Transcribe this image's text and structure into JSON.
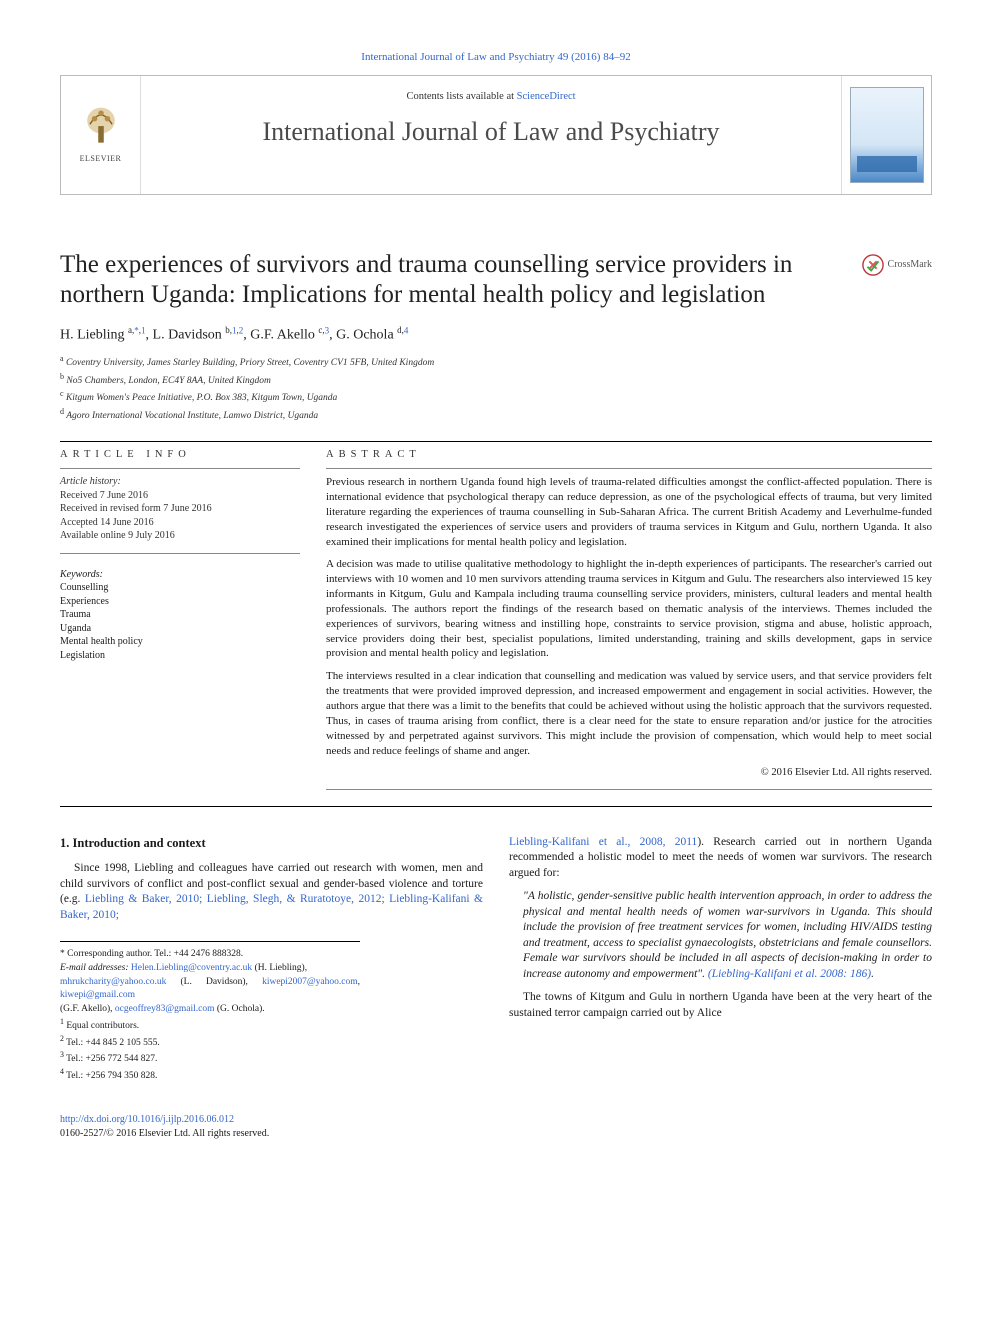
{
  "colors": {
    "link": "#3366cc",
    "text": "#1a1a1a",
    "rule": "#000000",
    "muted": "#4a4a4a",
    "background": "#ffffff"
  },
  "typography": {
    "body_family": "Georgia, 'Times New Roman', serif",
    "title_pt": 25,
    "journal_pt": 26,
    "body_pt": 11.5,
    "abstract_pt": 11,
    "footnote_pt": 9.5
  },
  "header": {
    "citation": "International Journal of Law and Psychiatry 49 (2016) 84–92",
    "contents_prefix": "Contents lists available at ",
    "contents_link": "ScienceDirect",
    "journal": "International Journal of Law and Psychiatry",
    "publisher": "ELSEVIER"
  },
  "crossmark": "CrossMark",
  "title": "The experiences of survivors and trauma counselling service providers in northern Uganda: Implications for mental health policy and legislation",
  "authors_html": "H. Liebling <sup>a,</sup><a class='sup'><sup>*</sup></a><sup>,</sup><a class='sup'><sup>1</sup></a>, L. Davidson <sup>b,</sup><a class='sup'><sup>1</sup></a><sup>,</sup><a class='sup'><sup>2</sup></a>, G.F. Akello <sup>c,</sup><a class='sup'><sup>3</sup></a>, G. Ochola <sup>d,</sup><a class='sup'><sup>4</sup></a>",
  "affiliations": {
    "a": "Coventry University, James Starley Building, Priory Street, Coventry CV1 5FB, United Kingdom",
    "b": "No5 Chambers, London, EC4Y 8AA, United Kingdom",
    "c": "Kitgum Women's Peace Initiative, P.O. Box 383, Kitgum Town, Uganda",
    "d": "Agoro International Vocational Institute, Lamwo District, Uganda"
  },
  "article_info": {
    "heading": "ARTICLE INFO",
    "history_label": "Article history:",
    "received": "Received 7 June 2016",
    "revised": "Received in revised form 7 June 2016",
    "accepted": "Accepted 14 June 2016",
    "online": "Available online 9 July 2016",
    "keywords_label": "Keywords:",
    "keywords": [
      "Counselling",
      "Experiences",
      "Trauma",
      "Uganda",
      "Mental health policy",
      "Legislation"
    ]
  },
  "abstract": {
    "heading": "ABSTRACT",
    "p1": "Previous research in northern Uganda found high levels of trauma-related difficulties amongst the conflict-affected population. There is international evidence that psychological therapy can reduce depression, as one of the psychological effects of trauma, but very limited literature regarding the experiences of trauma counselling in Sub-Saharan Africa. The current British Academy and Leverhulme-funded research investigated the experiences of service users and providers of trauma services in Kitgum and Gulu, northern Uganda. It also examined their implications for mental health policy and legislation.",
    "p2": "A decision was made to utilise qualitative methodology to highlight the in-depth experiences of participants. The researcher's carried out interviews with 10 women and 10 men survivors attending trauma services in Kitgum and Gulu. The researchers also interviewed 15 key informants in Kitgum, Gulu and Kampala including trauma counselling service providers, ministers, cultural leaders and mental health professionals. The authors report the findings of the research based on thematic analysis of the interviews. Themes included the experiences of survivors, bearing witness and instilling hope, constraints to service provision, stigma and abuse, holistic approach, service providers doing their best, specialist populations, limited understanding, training and skills development, gaps in service provision and mental health policy and legislation.",
    "p3": "The interviews resulted in a clear indication that counselling and medication was valued by service users, and that service providers felt the treatments that were provided improved depression, and increased empowerment and engagement in social activities. However, the authors argue that there was a limit to the benefits that could be achieved without using the holistic approach that the survivors requested. Thus, in cases of trauma arising from conflict, there is a clear need for the state to ensure reparation and/or justice for the atrocities witnessed by and perpetrated against survivors. This might include the provision of compensation, which would help to meet social needs and reduce feelings of shame and anger.",
    "copyright": "© 2016 Elsevier Ltd. All rights reserved."
  },
  "body": {
    "intro_heading": "1. Introduction and context",
    "intro_para_prefix": "Since 1998, Liebling and colleagues have carried out research with women, men and child survivors of conflict and post-conflict sexual and gender-based violence and torture (e.g. ",
    "intro_refs": "Liebling & Baker, 2010; Liebling, Slegh, & Ruratotoye, 2012; Liebling-Kalifani & Baker, 2010;",
    "col2_refs": "Liebling-Kalifani et al., 2008, 2011",
    "col2_after_refs": "). Research carried out in northern Uganda recommended a holistic model to meet the needs of women war survivors. The research argued for:",
    "quote": "\"A holistic, gender-sensitive public health intervention approach, in order to address the physical and mental health needs of women war-survivors in Uganda. This should include the provision of free treatment services for women, including HIV/AIDS testing and treatment, access to specialist gynaecologists, obstetricians and female counsellors. Female war survivors should be included in all aspects of decision-making in order to increase autonomy and empowerment\".",
    "quote_ref": "(Liebling-Kalifani et al. 2008: 186)",
    "col2_p2": "The towns of Kitgum and Gulu in northern Uganda have been at the very heart of the sustained terror campaign carried out by Alice"
  },
  "footnotes": {
    "corr": "Corresponding author. Tel.: +44 2476 888328.",
    "emails_label": "E-mail addresses:",
    "email1": "Helen.Liebling@coventry.ac.uk",
    "email1_who": " (H. Liebling),",
    "email2": "mhrukcharity@yahoo.co.uk",
    "email2_who": " (L. Davidson), ",
    "email3": "kiwepi2007@yahoo.com",
    "email3_sep": ", ",
    "email4": "kiwepi@gmail.com",
    "email4_who": " (G.F. Akello), ",
    "email5": "ocgeoffrey83@gmail.com",
    "email5_who": " (G. Ochola).",
    "n1": "Equal contributors.",
    "n2": "Tel.: +44 845 2 105 555.",
    "n3": "Tel.: +256 772 544 827.",
    "n4": "Tel.: +256 794 350 828."
  },
  "doi": {
    "url": "http://dx.doi.org/10.1016/j.ijlp.2016.06.012",
    "issn_line": "0160-2527/© 2016 Elsevier Ltd. All rights reserved."
  }
}
